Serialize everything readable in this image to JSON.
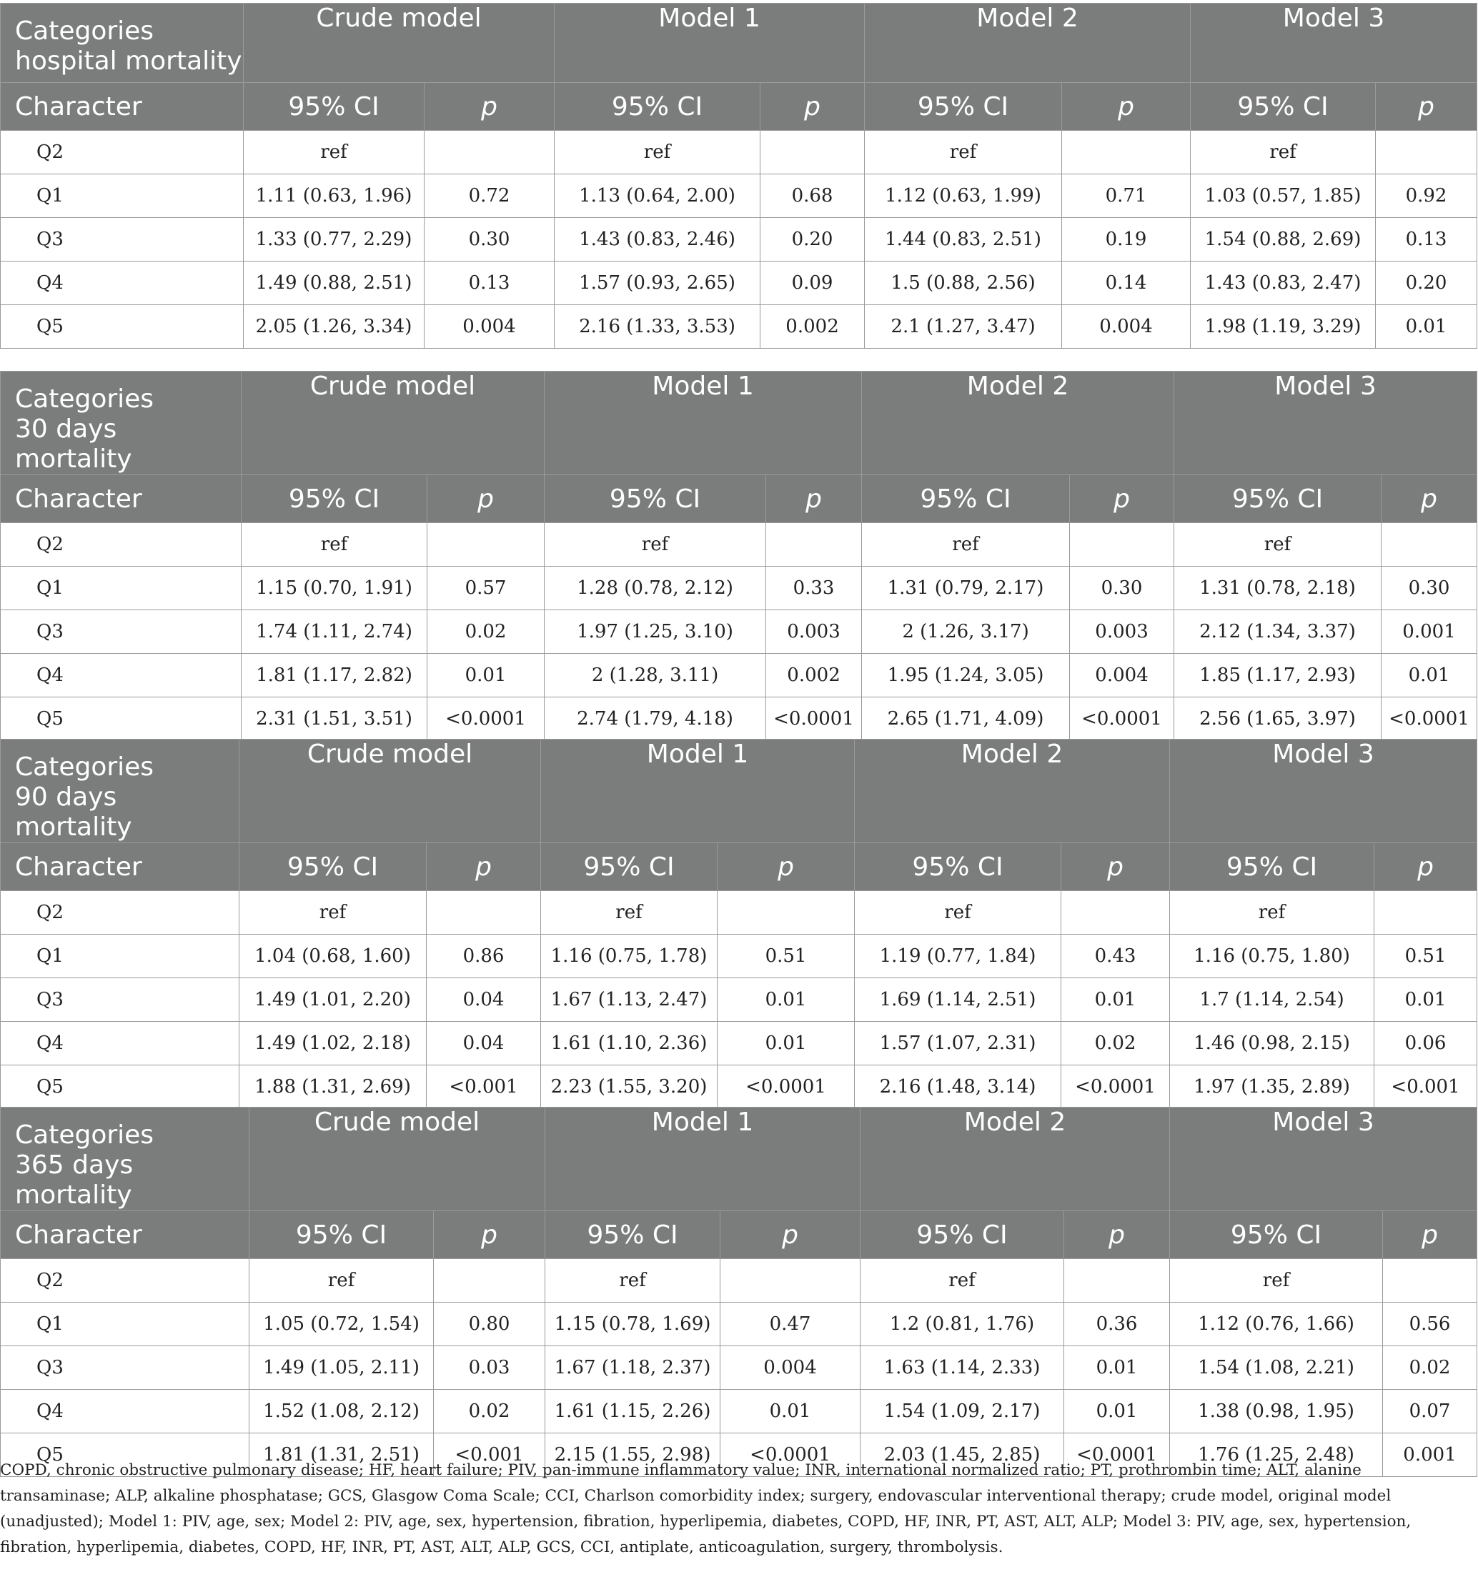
{
  "column_headers": {
    "categories": "Categories",
    "character": "Character",
    "ci": "95% CI",
    "p": "p",
    "models": [
      "Crude model",
      "Model 1",
      "Model 2",
      "Model 3"
    ]
  },
  "tables": [
    {
      "outcome": "hospital mortality",
      "rows": [
        {
          "q": "Q2",
          "cells": [
            "ref",
            "",
            "ref",
            "",
            "ref",
            "",
            "ref",
            ""
          ]
        },
        {
          "q": "Q1",
          "cells": [
            "1.11 (0.63, 1.96)",
            "0.72",
            "1.13 (0.64, 2.00)",
            "0.68",
            "1.12 (0.63, 1.99)",
            "0.71",
            "1.03 (0.57, 1.85)",
            "0.92"
          ]
        },
        {
          "q": "Q3",
          "cells": [
            "1.33 (0.77, 2.29)",
            "0.30",
            "1.43 (0.83, 2.46)",
            "0.20",
            "1.44 (0.83, 2.51)",
            "0.19",
            "1.54 (0.88, 2.69)",
            "0.13"
          ]
        },
        {
          "q": "Q4",
          "cells": [
            "1.49 (0.88, 2.51)",
            "0.13",
            "1.57 (0.93, 2.65)",
            "0.09",
            "1.5 (0.88, 2.56)",
            "0.14",
            "1.43 (0.83, 2.47)",
            "0.20"
          ]
        },
        {
          "q": "Q5",
          "cells": [
            "2.05 (1.26, 3.34)",
            "0.004",
            "2.16 (1.33, 3.53)",
            "0.002",
            "2.1 (1.27, 3.47)",
            "0.004",
            "1.98 (1.19, 3.29)",
            "0.01"
          ]
        }
      ]
    },
    {
      "outcome": "30 days mortality",
      "rows": [
        {
          "q": "Q2",
          "cells": [
            "ref",
            "",
            "ref",
            "",
            "ref",
            "",
            "ref",
            ""
          ]
        },
        {
          "q": "Q1",
          "cells": [
            "1.15 (0.70, 1.91)",
            "0.57",
            "1.28 (0.78, 2.12)",
            "0.33",
            "1.31 (0.79, 2.17)",
            "0.30",
            "1.31 (0.78, 2.18)",
            "0.30"
          ]
        },
        {
          "q": "Q3",
          "cells": [
            "1.74 (1.11, 2.74)",
            "0.02",
            "1.97 (1.25, 3.10)",
            "0.003",
            "2 (1.26, 3.17)",
            "0.003",
            "2.12 (1.34, 3.37)",
            "0.001"
          ]
        },
        {
          "q": "Q4",
          "cells": [
            "1.81 (1.17, 2.82)",
            "0.01",
            "2 (1.28, 3.11)",
            "0.002",
            "1.95 (1.24, 3.05)",
            "0.004",
            "1.85 (1.17, 2.93)",
            "0.01"
          ]
        },
        {
          "q": "Q5",
          "cells": [
            "2.31 (1.51, 3.51)",
            "<0.0001",
            "2.74 (1.79, 4.18)",
            "<0.0001",
            "2.65 (1.71, 4.09)",
            "<0.0001",
            "2.56 (1.65, 3.97)",
            "<0.0001"
          ]
        }
      ]
    },
    {
      "outcome": "90 days mortality",
      "rows": [
        {
          "q": "Q2",
          "cells": [
            "ref",
            "",
            "ref",
            "",
            "ref",
            "",
            "ref",
            ""
          ]
        },
        {
          "q": "Q1",
          "cells": [
            "1.04 (0.68, 1.60)",
            "0.86",
            "1.16 (0.75, 1.78)",
            "0.51",
            "1.19 (0.77, 1.84)",
            "0.43",
            "1.16 (0.75, 1.80)",
            "0.51"
          ]
        },
        {
          "q": "Q3",
          "cells": [
            "1.49 (1.01, 2.20)",
            "0.04",
            "1.67 (1.13, 2.47)",
            "0.01",
            "1.69 (1.14, 2.51)",
            "0.01",
            "1.7 (1.14, 2.54)",
            "0.01"
          ]
        },
        {
          "q": "Q4",
          "cells": [
            "1.49 (1.02, 2.18)",
            "0.04",
            "1.61 (1.10, 2.36)",
            "0.01",
            "1.57 (1.07, 2.31)",
            "0.02",
            "1.46 (0.98, 2.15)",
            "0.06"
          ]
        },
        {
          "q": "Q5",
          "cells": [
            "1.88 (1.31, 2.69)",
            "<0.001",
            "2.23 (1.55, 3.20)",
            "<0.0001",
            "2.16 (1.48, 3.14)",
            "<0.0001",
            "1.97 (1.35, 2.89)",
            "<0.001"
          ]
        }
      ]
    },
    {
      "outcome": "365 days mortality",
      "rows": [
        {
          "q": "Q2",
          "cells": [
            "ref",
            "",
            "ref",
            "",
            "ref",
            "",
            "ref",
            ""
          ]
        },
        {
          "q": "Q1",
          "cells": [
            "1.05 (0.72, 1.54)",
            "0.80",
            "1.15 (0.78, 1.69)",
            "0.47",
            "1.2 (0.81, 1.76)",
            "0.36",
            "1.12 (0.76, 1.66)",
            "0.56"
          ]
        },
        {
          "q": "Q3",
          "cells": [
            "1.49 (1.05, 2.11)",
            "0.03",
            "1.67 (1.18, 2.37)",
            "0.004",
            "1.63 (1.14, 2.33)",
            "0.01",
            "1.54 (1.08, 2.21)",
            "0.02"
          ]
        },
        {
          "q": "Q4",
          "cells": [
            "1.52 (1.08, 2.12)",
            "0.02",
            "1.61 (1.15, 2.26)",
            "0.01",
            "1.54 (1.09, 2.17)",
            "0.01",
            "1.38 (0.98, 1.95)",
            "0.07"
          ]
        },
        {
          "q": "Q5",
          "cells": [
            "1.81 (1.31, 2.51)",
            "<0.001",
            "2.15 (1.55, 2.98)",
            "<0.0001",
            "2.03 (1.45, 2.85)",
            "<0.0001",
            "1.76 (1.25, 2.48)",
            "0.001"
          ]
        }
      ]
    }
  ],
  "footnote": "COPD, chronic obstructive pulmonary disease; HF, heart failure; PIV, pan-immune inflammatory value; INR, international normalized ratio; PT, prothrombin time; ALT, alanine transaminase; ALP, alkaline phosphatase; GCS, Glasgow Coma Scale; CCI, Charlson comorbidity index; surgery, endovascular interventional therapy; crude model, original model (unadjusted); Model 1: PIV, age, sex; Model 2: PIV, age, sex, hypertension, fibration, hyperlipemia, diabetes, COPD, HF, INR, PT, AST, ALT, ALP; Model 3: PIV, age, sex, hypertension, fibration, hyperlipemia, diabetes, COPD, HF, INR, PT, AST, ALT, ALP, GCS, CCI, antiplate, anticoagulation, surgery, thrombolysis."
}
